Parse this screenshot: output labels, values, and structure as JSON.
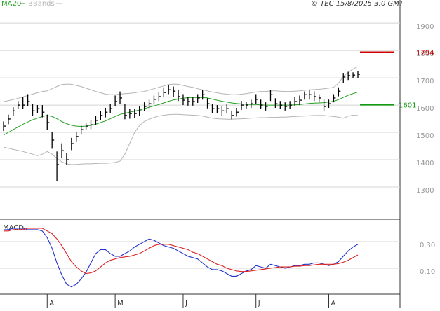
{
  "header": {
    "stamp": "© TEC 15/8/2025 3:0 GMT"
  },
  "chart_data": [
    {
      "type": "hlc",
      "categories": [
        null,
        null,
        null,
        null,
        null,
        null,
        null,
        null,
        null,
        "A",
        null,
        null,
        null,
        null,
        null,
        null,
        null,
        null,
        null,
        null,
        null,
        null,
        null,
        "M",
        null,
        null,
        null,
        null,
        null,
        null,
        null,
        null,
        null,
        null,
        null,
        null,
        null,
        "J",
        null,
        null,
        null,
        null,
        null,
        null,
        null,
        null,
        null,
        null,
        null,
        null,
        null,
        null,
        "J",
        null,
        null,
        null,
        null,
        null,
        null,
        null,
        null,
        null,
        null,
        null,
        null,
        null,
        null,
        "A",
        null,
        null,
        null,
        null,
        null,
        null
      ],
      "high": [
        1540,
        1565,
        1592,
        1615,
        1630,
        1640,
        1605,
        1600,
        1600,
        1565,
        1500,
        1430,
        1460,
        1425,
        1480,
        1500,
        1525,
        1535,
        1545,
        1560,
        1578,
        1590,
        1605,
        1635,
        1650,
        1605,
        1585,
        1585,
        1595,
        1610,
        1620,
        1635,
        1648,
        1665,
        1672,
        1668,
        1655,
        1640,
        1630,
        1628,
        1640,
        1655,
        1625,
        1605,
        1600,
        1595,
        1605,
        1580,
        1590,
        1615,
        1612,
        1620,
        1640,
        1620,
        1610,
        1655,
        1625,
        1615,
        1610,
        1615,
        1630,
        1635,
        1650,
        1655,
        1650,
        1640,
        1620,
        1620,
        1640,
        1665,
        1718,
        1722,
        1720,
        1725
      ],
      "low": [
        1505,
        1530,
        1560,
        1585,
        1585,
        1595,
        1560,
        1570,
        1555,
        1510,
        1440,
        1323,
        1405,
        1380,
        1435,
        1465,
        1492,
        1510,
        1512,
        1528,
        1545,
        1555,
        1570,
        1595,
        1605,
        1548,
        1550,
        1552,
        1560,
        1578,
        1588,
        1605,
        1615,
        1628,
        1640,
        1630,
        1615,
        1600,
        1598,
        1598,
        1608,
        1620,
        1588,
        1570,
        1572,
        1560,
        1570,
        1548,
        1558,
        1582,
        1585,
        1590,
        1605,
        1585,
        1580,
        1615,
        1590,
        1585,
        1580,
        1585,
        1598,
        1600,
        1620,
        1620,
        1615,
        1610,
        1577,
        1590,
        1610,
        1632,
        1680,
        1692,
        1698,
        1700
      ],
      "close": [
        1523,
        1549,
        1579,
        1600,
        1600,
        1613,
        1579,
        1587,
        1574,
        1536,
        1472,
        1382,
        1433,
        1400,
        1459,
        1485,
        1510,
        1523,
        1528,
        1544,
        1562,
        1574,
        1587,
        1613,
        1626,
        1562,
        1569,
        1569,
        1579,
        1595,
        1605,
        1621,
        1631,
        1646,
        1656,
        1651,
        1631,
        1618,
        1613,
        1613,
        1626,
        1638,
        1605,
        1587,
        1587,
        1579,
        1587,
        1562,
        1574,
        1600,
        1600,
        1605,
        1621,
        1600,
        1595,
        1638,
        1605,
        1600,
        1595,
        1600,
        1613,
        1618,
        1638,
        1638,
        1631,
        1626,
        1595,
        1605,
        1626,
        1651,
        1703,
        1708,
        1710,
        1713
      ],
      "bar_color": "#000000",
      "series": [
        {
          "name": "MA20",
          "color": "#22a022",
          "values": [
            1490,
            1500,
            1510,
            1520,
            1530,
            1538,
            1546,
            1552,
            1558,
            1562,
            1558,
            1550,
            1540,
            1532,
            1526,
            1523,
            1522,
            1523,
            1526,
            1530,
            1536,
            1542,
            1550,
            1558,
            1566,
            1570,
            1574,
            1578,
            1582,
            1587,
            1592,
            1597,
            1602,
            1608,
            1614,
            1619,
            1622,
            1625,
            1627,
            1628,
            1628,
            1628,
            1626,
            1622,
            1618,
            1614,
            1611,
            1608,
            1606,
            1604,
            1603,
            1602,
            1602,
            1601,
            1600,
            1600,
            1600,
            1600,
            1600,
            1600,
            1601,
            1602,
            1604,
            1606,
            1607,
            1608,
            1609,
            1611,
            1614,
            1620,
            1628,
            1636,
            1642,
            1648
          ]
        },
        {
          "name": "BBands",
          "color": "#b4b4b4",
          "values": [
            1613,
            1616,
            1620,
            1625,
            1630,
            1635,
            1640,
            1645,
            1650,
            1652,
            1660,
            1668,
            1675,
            1677,
            1676,
            1672,
            1668,
            1662,
            1656,
            1650,
            1645,
            1640,
            1638,
            1638,
            1640,
            1642,
            1643,
            1645,
            1648,
            1650,
            1655,
            1660,
            1665,
            1670,
            1675,
            1677,
            1676,
            1672,
            1668,
            1665,
            1660,
            1656,
            1652,
            1648,
            1645,
            1642,
            1640,
            1638,
            1638,
            1640,
            1642,
            1645,
            1648,
            1650,
            1650,
            1652,
            1652,
            1651,
            1650,
            1650,
            1651,
            1652,
            1654,
            1656,
            1657,
            1658,
            1660,
            1662,
            1665,
            1680,
            1705,
            1720,
            1732,
            1741
          ],
          "lower": [
            1446,
            1442,
            1438,
            1434,
            1430,
            1425,
            1420,
            1415,
            1420,
            1430,
            1420,
            1405,
            1392,
            1385,
            1382,
            1383,
            1384,
            1385,
            1385,
            1386,
            1387,
            1387,
            1388,
            1390,
            1395,
            1420,
            1460,
            1500,
            1525,
            1540,
            1548,
            1555,
            1560,
            1563,
            1565,
            1566,
            1566,
            1565,
            1564,
            1563,
            1562,
            1560,
            1556,
            1552,
            1550,
            1549,
            1548,
            1548,
            1549,
            1550,
            1551,
            1552,
            1553,
            1554,
            1554,
            1555,
            1555,
            1556,
            1556,
            1557,
            1558,
            1559,
            1560,
            1561,
            1562,
            1562,
            1562,
            1560,
            1558,
            1556,
            1552,
            1560,
            1563,
            1562
          ]
        }
      ],
      "levels": [
        {
          "value": 1794,
          "color": "#cc0000"
        },
        {
          "value": 1601,
          "color": "#119911"
        }
      ],
      "ylim": [
        1182,
        1985
      ],
      "yticks": [
        1300,
        1400,
        1500,
        1600,
        1700,
        1800,
        1900
      ],
      "grid": true
    },
    {
      "type": "line",
      "title": "MACD",
      "series": [
        {
          "color": "#2233cc",
          "values": [
            0.39,
            0.39,
            0.4,
            0.4,
            0.4,
            0.39,
            0.39,
            0.39,
            0.38,
            0.33,
            0.25,
            0.14,
            0.05,
            -0.02,
            -0.04,
            -0.02,
            0.02,
            0.07,
            0.14,
            0.21,
            0.24,
            0.24,
            0.21,
            0.19,
            0.19,
            0.21,
            0.23,
            0.26,
            0.28,
            0.3,
            0.32,
            0.31,
            0.29,
            0.27,
            0.26,
            0.25,
            0.23,
            0.21,
            0.19,
            0.18,
            0.17,
            0.14,
            0.11,
            0.09,
            0.09,
            0.08,
            0.06,
            0.04,
            0.04,
            0.06,
            0.08,
            0.09,
            0.12,
            0.11,
            0.1,
            0.13,
            0.12,
            0.11,
            0.1,
            0.11,
            0.12,
            0.12,
            0.13,
            0.13,
            0.14,
            0.14,
            0.13,
            0.12,
            0.13,
            0.15,
            0.19,
            0.23,
            0.26,
            0.28
          ]
        },
        {
          "color": "#dd2222",
          "values": [
            0.38,
            0.38,
            0.39,
            0.39,
            0.39,
            0.4,
            0.4,
            0.4,
            0.4,
            0.38,
            0.36,
            0.32,
            0.27,
            0.21,
            0.15,
            0.11,
            0.08,
            0.06,
            0.065,
            0.08,
            0.11,
            0.14,
            0.16,
            0.17,
            0.18,
            0.185,
            0.19,
            0.2,
            0.21,
            0.23,
            0.25,
            0.27,
            0.28,
            0.28,
            0.28,
            0.27,
            0.26,
            0.25,
            0.24,
            0.22,
            0.21,
            0.19,
            0.17,
            0.15,
            0.13,
            0.12,
            0.1,
            0.09,
            0.08,
            0.075,
            0.075,
            0.08,
            0.085,
            0.09,
            0.095,
            0.1,
            0.105,
            0.11,
            0.11,
            0.11,
            0.115,
            0.115,
            0.12,
            0.12,
            0.125,
            0.13,
            0.13,
            0.13,
            0.13,
            0.135,
            0.145,
            0.16,
            0.18,
            0.2
          ]
        }
      ],
      "ylim": [
        -0.095,
        0.458
      ],
      "yticks": [
        {
          "value": 0.3,
          "label": "0.30"
        },
        {
          "value": 0.1,
          "label": "0.10"
        }
      ],
      "grid": true
    }
  ]
}
